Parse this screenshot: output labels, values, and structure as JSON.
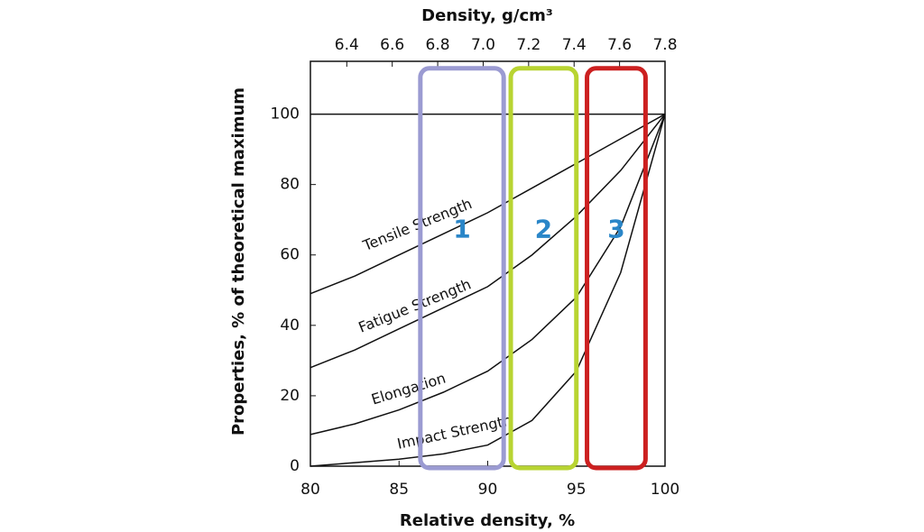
{
  "chart_data": {
    "type": "line",
    "x_label": "Relative density, %",
    "y_label": "Properties, % of theoretical maximum",
    "x2_label": "Density, g/cm³",
    "xlim": [
      80,
      100
    ],
    "xticks": [
      80,
      85,
      90,
      95,
      100
    ],
    "ylim": [
      0,
      115
    ],
    "yticks": [
      0,
      20,
      40,
      60,
      80,
      100
    ],
    "x2lim": [
      6.24,
      7.8
    ],
    "x2ticks": [
      6.4,
      6.6,
      6.8,
      7.0,
      7.2,
      7.4,
      7.6,
      7.8
    ],
    "reference_line": 100,
    "series": [
      {
        "name": "Tensile Strength",
        "color": "#111111",
        "x": [
          80,
          82.5,
          85,
          87.5,
          90,
          92.5,
          95,
          97.5,
          100
        ],
        "values": [
          49,
          54,
          60,
          66,
          72,
          79,
          86,
          93,
          100
        ]
      },
      {
        "name": "Fatigue Strength",
        "color": "#111111",
        "x": [
          80,
          82.5,
          85,
          87.5,
          90,
          92.5,
          95,
          97.5,
          100
        ],
        "values": [
          28,
          33,
          39,
          45,
          51,
          60,
          71,
          84,
          100
        ]
      },
      {
        "name": "Elongation",
        "color": "#111111",
        "x": [
          80,
          82.5,
          85,
          87.5,
          90,
          92.5,
          95,
          97.5,
          100
        ],
        "values": [
          9,
          12,
          16,
          21,
          27,
          36,
          48,
          68,
          100
        ]
      },
      {
        "name": "Impact Strength",
        "color": "#111111",
        "x": [
          80,
          82.5,
          85,
          87.5,
          90,
          92.5,
          95,
          97.5,
          100
        ],
        "values": [
          0,
          1,
          2,
          3.5,
          6,
          13,
          27,
          55,
          100
        ]
      }
    ],
    "regions": [
      {
        "label": "1",
        "color": "#9b9bd2",
        "x": [
          86.2,
          90.9
        ],
        "y": [
          -0.5,
          113
        ]
      },
      {
        "label": "2",
        "color": "#b8d432",
        "x": [
          91.3,
          95.0
        ],
        "y": [
          -0.5,
          113
        ]
      },
      {
        "label": "3",
        "color": "#cc2020",
        "x": [
          95.6,
          98.9
        ],
        "y": [
          -0.5,
          113
        ]
      }
    ],
    "label_color": "#2a86c8"
  }
}
